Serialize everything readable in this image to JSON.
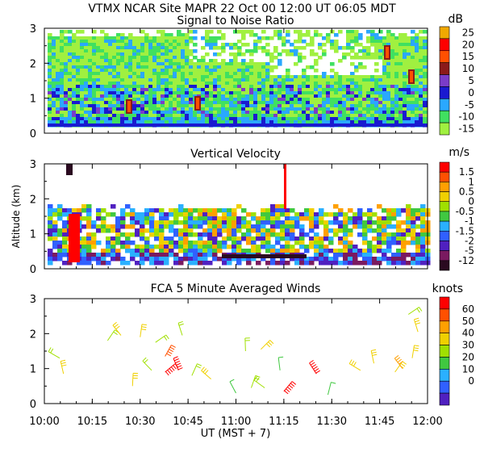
{
  "header": "VTMX  NCAR Site  MAPR 22 Oct 00  12:00 UT  06:05  MDT",
  "chart_data": {
    "type": "heatmap",
    "x_tick_labels": [
      "10:00",
      "10:15",
      "10:30",
      "10:45",
      "11:00",
      "11:15",
      "11:30",
      "11:45",
      "12:00"
    ],
    "x_range_ut_hours": [
      10.0,
      12.0
    ],
    "xlabel": "UT  (MST + 7)",
    "ylabel": "Altitude (km)",
    "panels": [
      {
        "title": "Signal to Noise Ratio",
        "unit": "dB",
        "ylim": [
          0,
          3
        ],
        "y_ticks": [
          "0",
          "1",
          "2",
          "3"
        ],
        "colorbar_labels": [
          "25",
          "20",
          "15",
          "10",
          "5",
          "0",
          "-5",
          "-10",
          "-15"
        ],
        "colorbar_colors": [
          "#f0a800",
          "#ff0000",
          "#ff5000",
          "#8b1a1a",
          "#7a3cc8",
          "#1a1ad0",
          "#2aa8ff",
          "#40e060",
          "#a0f040"
        ]
      },
      {
        "title": "Vertical Velocity",
        "unit": "m/s",
        "ylim": [
          0,
          3
        ],
        "y_ticks": [
          "0",
          "1",
          "2",
          "3"
        ],
        "colorbar_labels": [
          "1.5",
          "1",
          "0.5",
          "0",
          "-0.5",
          "-1",
          "-1.5",
          "-2",
          "-5",
          "-12"
        ],
        "colorbar_colors": [
          "#ff0000",
          "#ff5000",
          "#ffa000",
          "#f0d000",
          "#a0e000",
          "#40c840",
          "#2ab0ff",
          "#3060ff",
          "#5020c0",
          "#7a1a60",
          "#2a0a20"
        ]
      },
      {
        "title": "FCA 5 Minute Averaged Winds",
        "unit": "knots",
        "ylim": [
          0,
          3
        ],
        "y_ticks": [
          "0",
          "1",
          "2",
          "3"
        ],
        "colorbar_labels": [
          "60",
          "50",
          "40",
          "30",
          "20",
          "10",
          "0"
        ],
        "colorbar_colors": [
          "#ff0000",
          "#ff5000",
          "#ffa000",
          "#f0d000",
          "#a0e000",
          "#40c840",
          "#2ab0ff",
          "#3060ff",
          "#5020c0"
        ],
        "barbs": [
          {
            "t": 10.08,
            "alt": 1.3,
            "knots": 15
          },
          {
            "t": 10.1,
            "alt": 0.85,
            "knots": 25
          },
          {
            "t": 10.33,
            "alt": 1.8,
            "knots": 15
          },
          {
            "t": 10.4,
            "alt": 1.95,
            "knots": 30
          },
          {
            "t": 10.5,
            "alt": 1.9,
            "knots": 25
          },
          {
            "t": 10.58,
            "alt": 1.75,
            "knots": 20
          },
          {
            "t": 10.72,
            "alt": 1.95,
            "knots": 15
          },
          {
            "t": 10.63,
            "alt": 1.35,
            "knots": 50
          },
          {
            "t": 10.56,
            "alt": 0.95,
            "knots": 15
          },
          {
            "t": 10.46,
            "alt": 0.5,
            "knots": 30
          },
          {
            "t": 10.63,
            "alt": 0.9,
            "knots": 60
          },
          {
            "t": 10.7,
            "alt": 0.95,
            "knots": 60
          },
          {
            "t": 10.77,
            "alt": 0.8,
            "knots": 20
          },
          {
            "t": 10.87,
            "alt": 0.7,
            "knots": 25
          },
          {
            "t": 11.05,
            "alt": 1.5,
            "knots": 15
          },
          {
            "t": 11.13,
            "alt": 1.55,
            "knots": 25
          },
          {
            "t": 11.0,
            "alt": 0.3,
            "knots": 5
          },
          {
            "t": 11.08,
            "alt": 0.45,
            "knots": 20
          },
          {
            "t": 11.15,
            "alt": 0.45,
            "knots": 20
          },
          {
            "t": 11.23,
            "alt": 0.95,
            "knots": 5
          },
          {
            "t": 11.25,
            "alt": 0.35,
            "knots": 60
          },
          {
            "t": 11.42,
            "alt": 0.85,
            "knots": 60
          },
          {
            "t": 11.48,
            "alt": 0.25,
            "knots": 5
          },
          {
            "t": 11.65,
            "alt": 0.95,
            "knots": 30
          },
          {
            "t": 11.72,
            "alt": 1.15,
            "knots": 30
          },
          {
            "t": 11.83,
            "alt": 0.9,
            "knots": 25
          },
          {
            "t": 11.87,
            "alt": 1.0,
            "knots": 40
          },
          {
            "t": 11.92,
            "alt": 1.3,
            "knots": 30
          },
          {
            "t": 11.9,
            "alt": 2.55,
            "knots": 15
          },
          {
            "t": 11.95,
            "alt": 2.05,
            "knots": 25
          }
        ]
      }
    ]
  }
}
